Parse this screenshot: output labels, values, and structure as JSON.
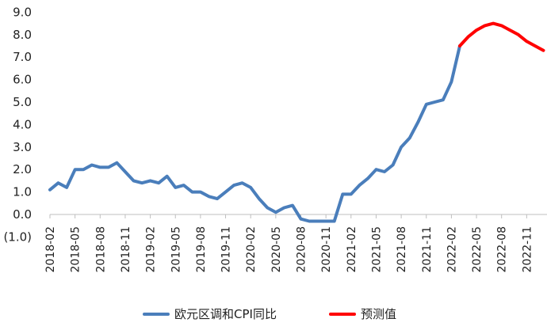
{
  "chart_data": {
    "type": "line",
    "title": "",
    "xlabel": "",
    "ylabel": "",
    "ylim": [
      -1.0,
      9.0
    ],
    "y_ticks": [
      "(1.0)",
      "0.0",
      "1.0",
      "2.0",
      "3.0",
      "4.0",
      "5.0",
      "6.0",
      "7.0",
      "8.0",
      "9.0"
    ],
    "negative_label_color": "#ff0000",
    "x_tick_labels": [
      "2018-02",
      "2018-05",
      "2018-08",
      "2018-11",
      "2019-02",
      "2019-05",
      "2019-08",
      "2019-11",
      "2020-02",
      "2020-05",
      "2020-08",
      "2020-11",
      "2021-02",
      "2021-05",
      "2021-08",
      "2021-11",
      "2022-02",
      "2022-05",
      "2022-08",
      "2022-11"
    ],
    "x": [
      "2018-02",
      "2018-03",
      "2018-04",
      "2018-05",
      "2018-06",
      "2018-07",
      "2018-08",
      "2018-09",
      "2018-10",
      "2018-11",
      "2018-12",
      "2019-01",
      "2019-02",
      "2019-03",
      "2019-04",
      "2019-05",
      "2019-06",
      "2019-07",
      "2019-08",
      "2019-09",
      "2019-10",
      "2019-11",
      "2019-12",
      "2020-01",
      "2020-02",
      "2020-03",
      "2020-04",
      "2020-05",
      "2020-06",
      "2020-07",
      "2020-08",
      "2020-09",
      "2020-10",
      "2020-11",
      "2020-12",
      "2021-01",
      "2021-02",
      "2021-03",
      "2021-04",
      "2021-05",
      "2021-06",
      "2021-07",
      "2021-08",
      "2021-09",
      "2021-10",
      "2021-11",
      "2021-12",
      "2022-01",
      "2022-02",
      "2022-03",
      "2022-04",
      "2022-05",
      "2022-06",
      "2022-07",
      "2022-08",
      "2022-09",
      "2022-10",
      "2022-11",
      "2022-12",
      "2023-01"
    ],
    "series": [
      {
        "name": "欧元区调和CPI同比",
        "color": "#4a7ebb",
        "values": [
          1.1,
          1.4,
          1.2,
          2.0,
          2.0,
          2.2,
          2.1,
          2.1,
          2.3,
          1.9,
          1.5,
          1.4,
          1.5,
          1.4,
          1.7,
          1.2,
          1.3,
          1.0,
          1.0,
          0.8,
          0.7,
          1.0,
          1.3,
          1.4,
          1.2,
          0.7,
          0.3,
          0.1,
          0.3,
          0.4,
          -0.2,
          -0.3,
          -0.3,
          -0.3,
          -0.3,
          0.9,
          0.9,
          1.3,
          1.6,
          2.0,
          1.9,
          2.2,
          3.0,
          3.4,
          4.1,
          4.9,
          5.0,
          5.1,
          5.9,
          7.5,
          null,
          null,
          null,
          null,
          null,
          null,
          null,
          null,
          null,
          null
        ]
      },
      {
        "name": "预测值",
        "color": "#ff0000",
        "values": [
          null,
          null,
          null,
          null,
          null,
          null,
          null,
          null,
          null,
          null,
          null,
          null,
          null,
          null,
          null,
          null,
          null,
          null,
          null,
          null,
          null,
          null,
          null,
          null,
          null,
          null,
          null,
          null,
          null,
          null,
          null,
          null,
          null,
          null,
          null,
          null,
          null,
          null,
          null,
          null,
          null,
          null,
          null,
          null,
          null,
          null,
          null,
          null,
          null,
          7.5,
          7.9,
          8.2,
          8.4,
          8.5,
          8.4,
          8.2,
          8.0,
          7.7,
          7.5,
          7.3
        ]
      }
    ],
    "legend_position": "bottom-center"
  }
}
